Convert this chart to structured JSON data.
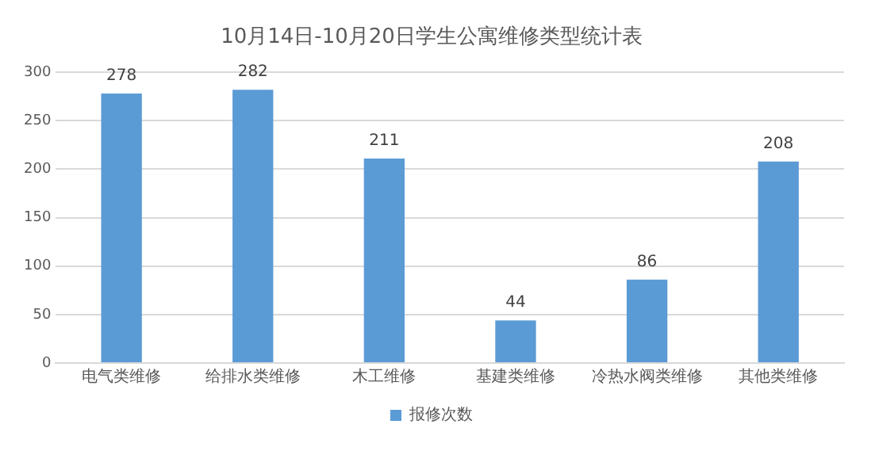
{
  "chart_data": {
    "type": "bar",
    "title": "10月14日-10月20日学生公寓维修类型统计表",
    "categories": [
      "电气类维修",
      "给排水类维修",
      "木工维修",
      "基建类维修",
      "冷热水阀类维修",
      "其他类维修"
    ],
    "series": [
      {
        "name": "报修次数",
        "color": "#5b9bd5",
        "values": [
          278,
          282,
          211,
          44,
          86,
          208
        ]
      }
    ],
    "ylim": [
      0,
      300
    ],
    "yticks": [
      0,
      50,
      100,
      150,
      200,
      250,
      300
    ],
    "grid": "y",
    "legend": "bottom",
    "data_labels": true
  }
}
